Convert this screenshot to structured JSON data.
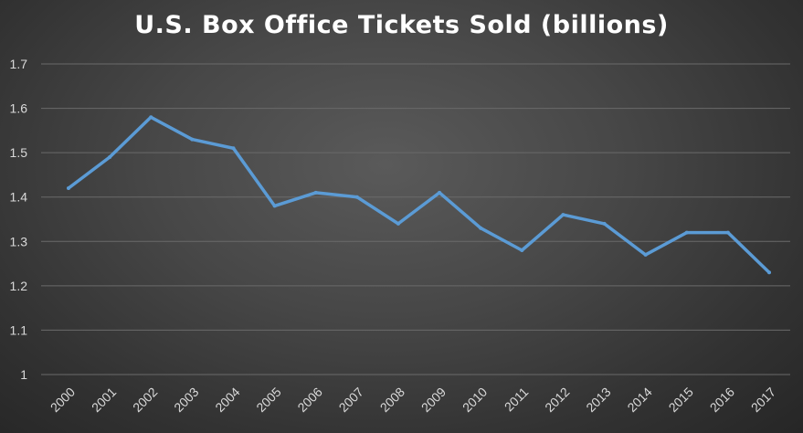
{
  "chart_data": {
    "type": "line",
    "title": "U.S. Box Office Tickets Sold (billions)",
    "xlabel": "",
    "ylabel": "",
    "categories": [
      "2000",
      "2001",
      "2002",
      "2003",
      "2004",
      "2005",
      "2006",
      "2007",
      "2008",
      "2009",
      "2010",
      "2011",
      "2012",
      "2013",
      "2014",
      "2015",
      "2016",
      "2017"
    ],
    "series": [
      {
        "values": [
          1.42,
          1.49,
          1.58,
          1.53,
          1.51,
          1.38,
          1.41,
          1.4,
          1.34,
          1.41,
          1.33,
          1.28,
          1.36,
          1.34,
          1.27,
          1.32,
          1.32,
          1.23
        ]
      }
    ],
    "ylim": [
      1,
      1.7
    ],
    "yticks": [
      "1",
      "1.1",
      "1.2",
      "1.3",
      "1.4",
      "1.5",
      "1.6",
      "1.7"
    ],
    "grid": true,
    "legend": "none",
    "colors": {
      "line": "#5b9bd5",
      "grid": "#6a6a6a",
      "text": "#d9d9d9",
      "title": "#ffffff"
    }
  }
}
